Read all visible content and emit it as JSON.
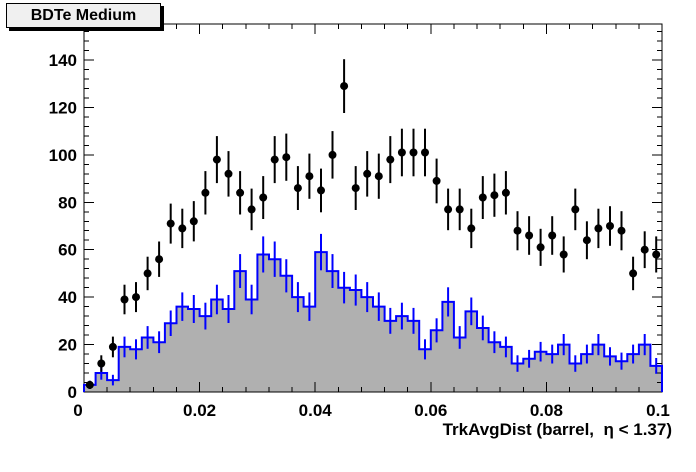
{
  "title_box": {
    "label": "BDTe Medium"
  },
  "chart_data": {
    "type": "bar",
    "subtype": "root-histogram-with-points",
    "title": "BDTe Medium",
    "xlabel": "TrkAvgDist (barrel,  η < 1.37)",
    "ylabel": "",
    "x_range": [
      0,
      0.1
    ],
    "y_range": [
      0,
      155
    ],
    "bin_width": 0.002,
    "grid": false,
    "legend": null,
    "x_tick_values": [
      0,
      0.02,
      0.04,
      0.06,
      0.08,
      0.1
    ],
    "x_tick_labels": [
      "0",
      "0.02",
      "0.04",
      "0.06",
      "0.08",
      "0.1"
    ],
    "x_minor_step": 0.004,
    "y_tick_values": [
      0,
      20,
      40,
      60,
      80,
      100,
      120,
      140
    ],
    "y_tick_labels": [
      "0",
      "20",
      "40",
      "60",
      "80",
      "100",
      "120",
      "140"
    ],
    "y_minor_step": 4,
    "colors": {
      "hist_line": "#0000ff",
      "hist_fill": "#b0b0b0",
      "points": "#000000",
      "frame": "#000000"
    },
    "x": [
      0.001,
      0.003,
      0.005,
      0.007,
      0.009,
      0.011,
      0.013,
      0.015,
      0.017,
      0.019,
      0.021,
      0.023,
      0.025,
      0.027,
      0.029,
      0.031,
      0.033,
      0.035,
      0.037,
      0.039,
      0.041,
      0.043,
      0.045,
      0.047,
      0.049,
      0.051,
      0.053,
      0.055,
      0.057,
      0.059,
      0.061,
      0.063,
      0.065,
      0.067,
      0.069,
      0.071,
      0.073,
      0.075,
      0.077,
      0.079,
      0.081,
      0.083,
      0.085,
      0.087,
      0.089,
      0.091,
      0.093,
      0.095,
      0.097,
      0.099
    ],
    "series": [
      {
        "name": "filled-step-histogram",
        "type": "step-histogram",
        "line_color": "#0000ff",
        "fill_color": "#b0b0b0",
        "error_bars": "sqrt",
        "values": [
          3,
          8,
          5,
          19,
          18,
          23,
          21,
          29,
          36,
          35,
          32,
          39,
          35,
          51,
          39,
          58,
          56,
          49,
          40,
          36,
          59,
          51,
          44,
          43,
          40,
          36,
          30,
          32,
          30,
          18,
          26,
          38,
          23,
          34,
          27,
          21,
          19,
          12,
          14,
          17,
          16,
          20,
          12,
          16,
          20,
          15,
          13,
          16,
          20,
          11
        ]
      },
      {
        "name": "data-points",
        "type": "points",
        "marker": "full-circle",
        "color": "#000000",
        "error_bars": "sqrt",
        "values": [
          3,
          12,
          19,
          39,
          40,
          50,
          56,
          71,
          69,
          72,
          84,
          98,
          92,
          84,
          77,
          82,
          98,
          99,
          86,
          91,
          85,
          100,
          129,
          86,
          92,
          91,
          98,
          101,
          101,
          101,
          89,
          77,
          77,
          69,
          82,
          83,
          84,
          68,
          66,
          61,
          66,
          58,
          77,
          64,
          69,
          70,
          68,
          50,
          60,
          58
        ]
      }
    ]
  }
}
